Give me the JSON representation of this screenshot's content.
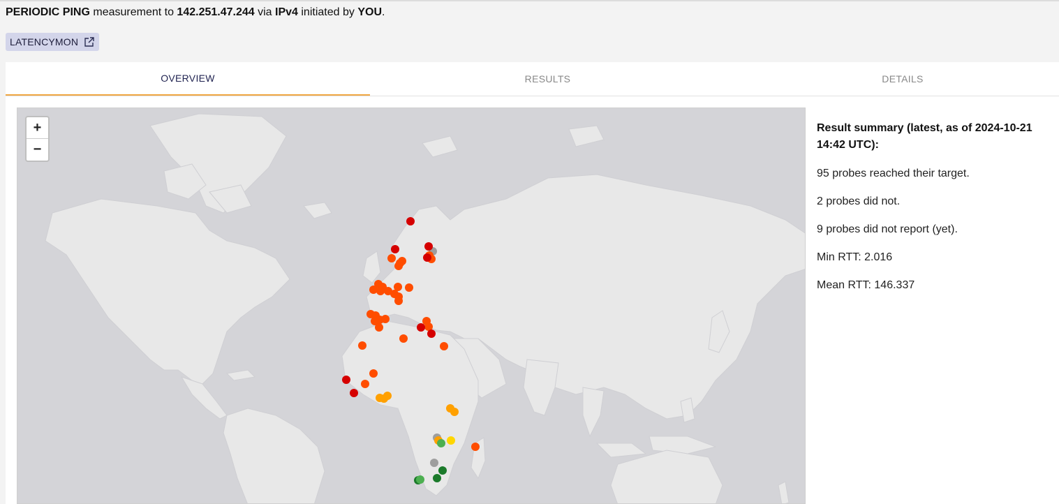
{
  "header": {
    "type": "PERIODIC PING",
    "t1": "measurement to",
    "target": "142.251.47.244",
    "t2": "via",
    "af": "IPv4",
    "t3": "initiated by",
    "initiator": "YOU",
    "t4": "."
  },
  "chip": {
    "label": "LATENCYMON",
    "icon": "external-link-icon"
  },
  "tabs": [
    {
      "label": "OVERVIEW",
      "active": true
    },
    {
      "label": "RESULTS",
      "active": false
    },
    {
      "label": "DETAILS",
      "active": false
    }
  ],
  "map": {
    "zoom_in": "+",
    "zoom_out": "−",
    "ocean_color": "#d4d4d8",
    "land_color": "#e8e8e8",
    "probe_colors": {
      "dark_red": "#d50000",
      "orange_red": "#ff4d00",
      "orange": "#ffa000",
      "yellow": "#ffd600",
      "light_green": "#4caf50",
      "dark_green": "#1b7a2a",
      "grey": "#9e9e9e"
    }
  },
  "summary": {
    "title": "Result summary (latest, as of 2024-10-21 14:42 UTC):",
    "reached": "95 probes reached their target.",
    "not_reached": "2 probes did not.",
    "not_reported": "9 probes did not report (yet).",
    "min_rtt": "Min RTT: 2.016",
    "mean_rtt": "Mean RTT: 146.337"
  }
}
